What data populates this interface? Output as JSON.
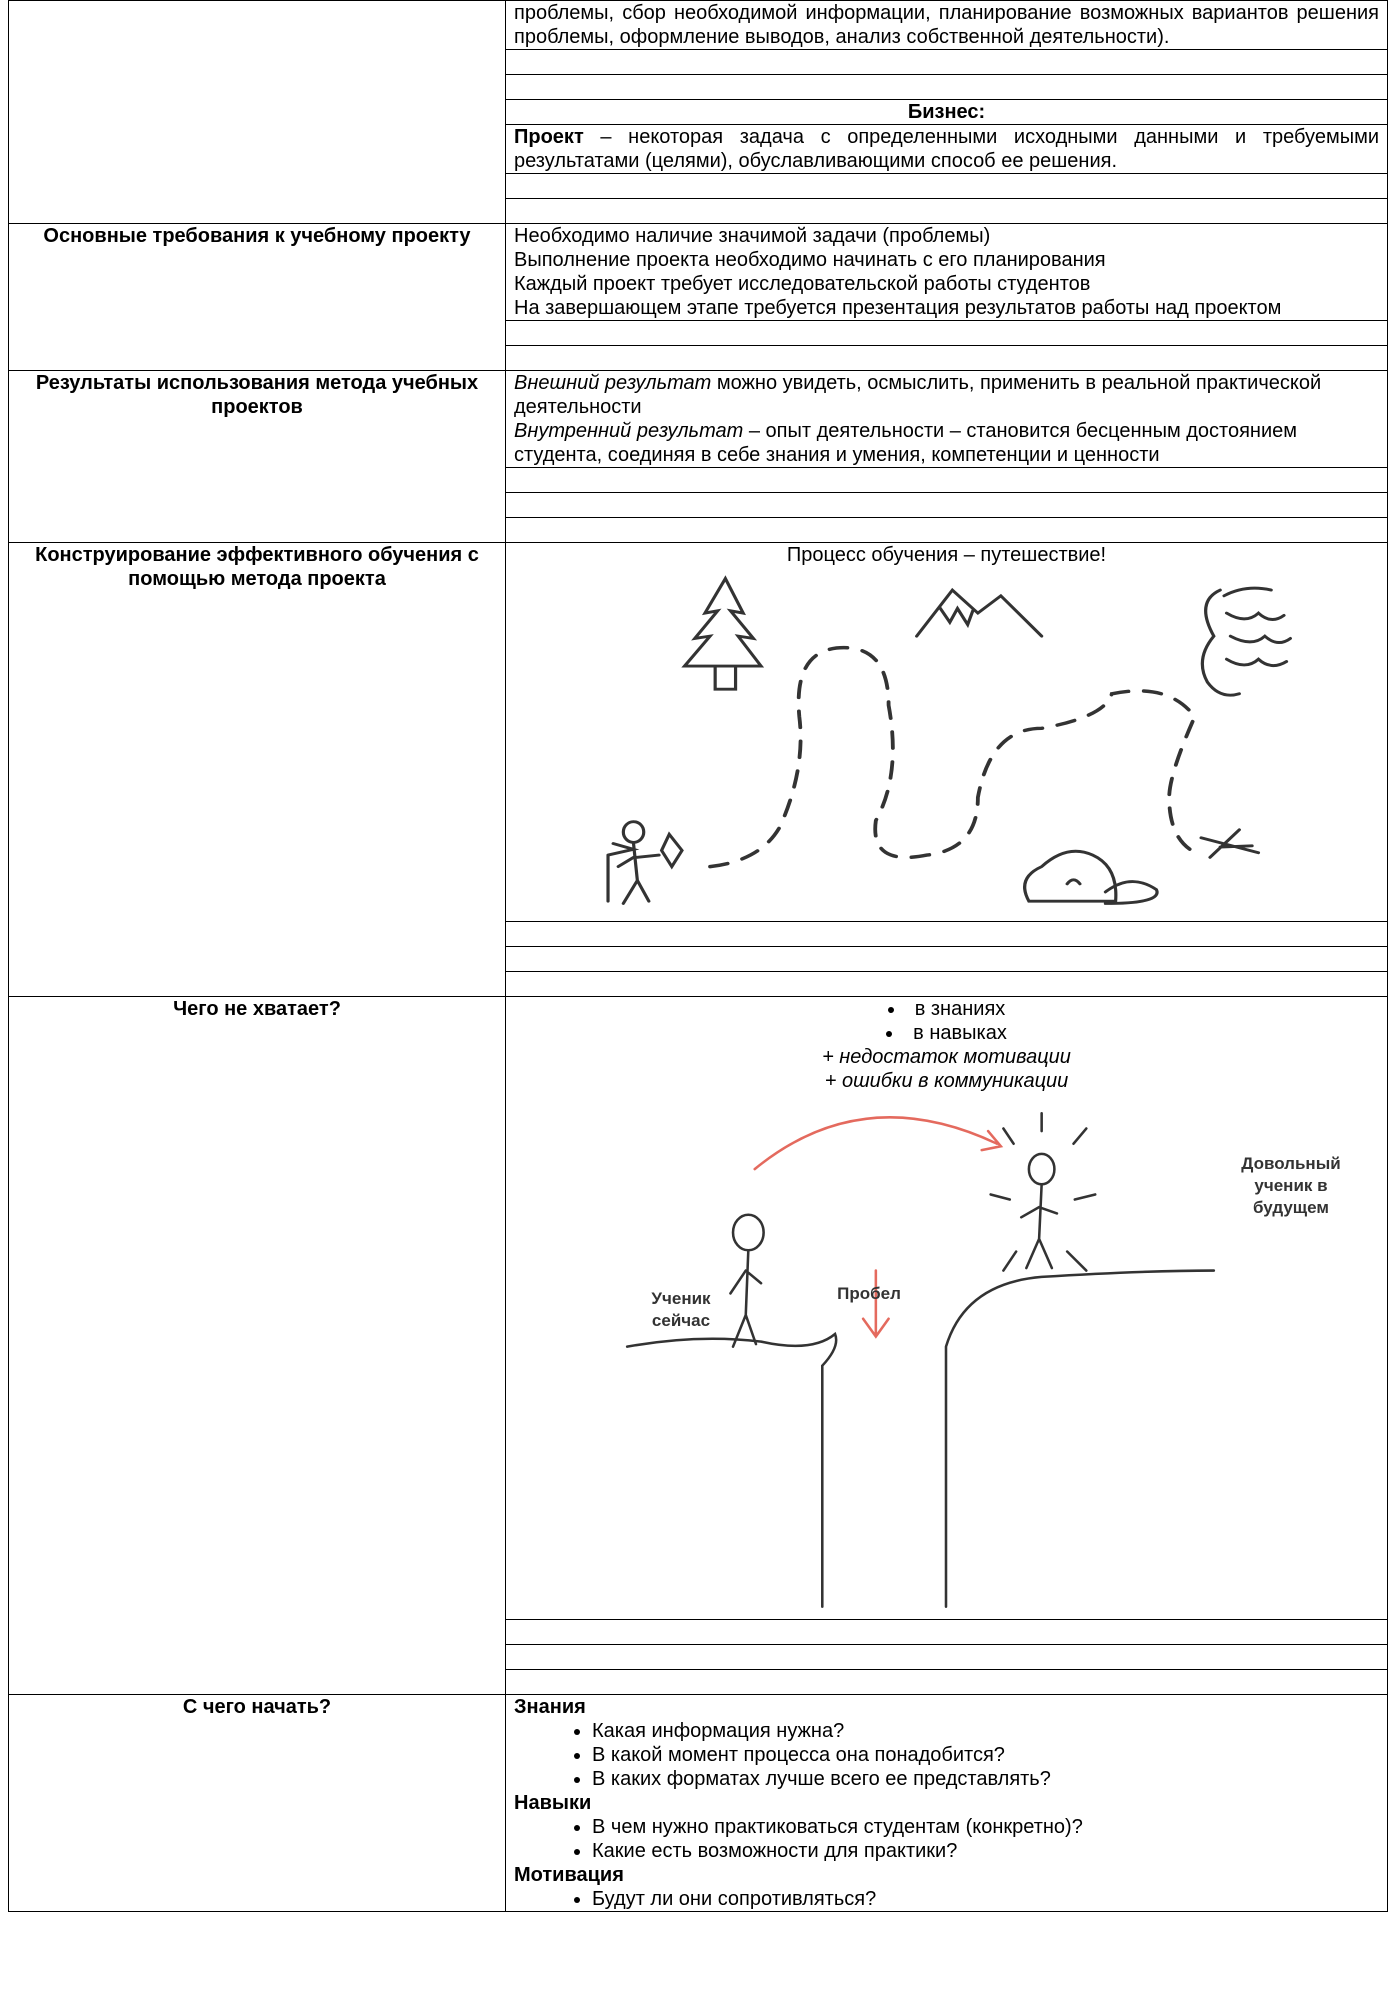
{
  "row1": {
    "text": "проблемы, сбор необходимой информации, планирование возможных вариантов решения проблемы, оформление выводов, анализ собственной деятельности).",
    "business_heading": "Бизнес:",
    "project_term": "Проект",
    "project_text": "– некоторая задача с определенными исходными данными и требуемыми результатами (целями), обуславливающими способ ее решения."
  },
  "row2": {
    "label": "Основные требования к учебному проекту",
    "items": [
      "Необходимо наличие значимой задачи (проблемы)",
      "Выполнение проекта необходимо начинать с его планирования",
      "Каждый проект требует исследовательской работы студентов",
      "На завершающем этапе требуется презентация результатов работы над проектом"
    ]
  },
  "row3": {
    "label": "Результаты использования метода учебных проектов",
    "external_term": "Внешний результат",
    "external_text": "можно увидеть, осмыслить, применить в реальной практической деятельности",
    "internal_term": "Внутренний результат",
    "internal_text": "– опыт деятельности – становится бесценным достоянием студента, соединяя в себе знания и умения, компетенции и ценности"
  },
  "row4": {
    "label": "Конструирование эффективного обучения с помощью метода проекта",
    "caption": "Процесс обучения – путешествие!"
  },
  "row5": {
    "label": "Чего не хватает?",
    "bullets": [
      "в знаниях",
      "в навыках"
    ],
    "notes": [
      "+ недостаток мотивации",
      "+ ошибки в коммуникации"
    ],
    "figure": {
      "now": "Ученик сейчас",
      "gap": "Пробел",
      "future": "Довольный ученик в будущем"
    }
  },
  "row6": {
    "label": "С чего начать?",
    "sections": [
      {
        "heading": "Знания",
        "items": [
          "Какая информация нужна?",
          "В какой момент процесса она понадобится?",
          "В каких форматах лучше всего ее представлять?"
        ]
      },
      {
        "heading": "Навыки",
        "items": [
          "В чем нужно практиковаться студентам (конкретно)?",
          "Какие есть возможности для практики?"
        ]
      },
      {
        "heading": "Мотивация",
        "items": [
          "Будут ли они сопротивляться?"
        ]
      }
    ]
  }
}
